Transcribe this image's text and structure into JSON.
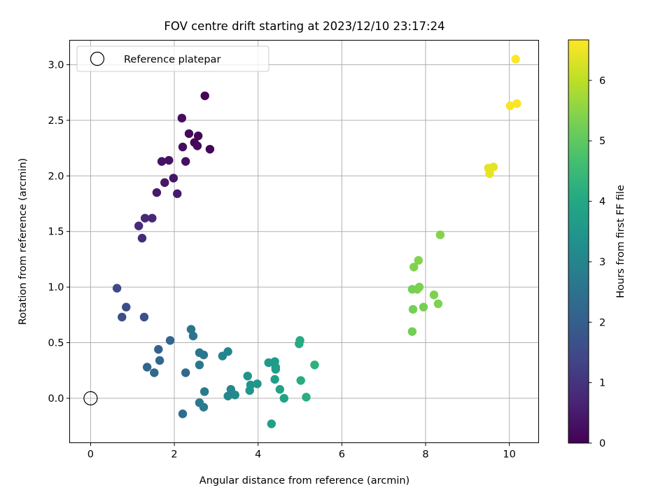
{
  "chart_data": {
    "type": "scatter",
    "title": "FOV centre drift starting at 2023/12/10 23:17:24",
    "xlabel": "Angular distance from reference (arcmin)",
    "ylabel": "Rotation from reference (arcmin)",
    "xlim": [
      -0.5,
      10.7
    ],
    "ylim": [
      -0.4,
      3.22
    ],
    "xticks": [
      0,
      2,
      4,
      6,
      8,
      10
    ],
    "xtick_labels": [
      "0",
      "2",
      "4",
      "6",
      "8",
      "10"
    ],
    "yticks": [
      0.0,
      0.5,
      1.0,
      1.5,
      2.0,
      2.5,
      3.0
    ],
    "ytick_labels": [
      "0.0",
      "0.5",
      "1.0",
      "1.5",
      "2.0",
      "2.5",
      "3.0"
    ],
    "grid": true,
    "legend": {
      "placement": "top-left",
      "entries": [
        "Reference platepar"
      ]
    },
    "reference_point": {
      "x": 0,
      "y": 0,
      "label": "Reference platepar"
    },
    "colorbar": {
      "label": "Hours from first FF file",
      "colormap": "viridis",
      "range": [
        0,
        6.67
      ],
      "ticks": [
        0,
        1,
        2,
        3,
        4,
        5,
        6
      ],
      "tick_labels": [
        "0",
        "1",
        "2",
        "3",
        "4",
        "5",
        "6"
      ]
    },
    "points": [
      {
        "x": 2.73,
        "y": 2.72,
        "t": 0.05
      },
      {
        "x": 2.85,
        "y": 2.24,
        "t": 0.08
      },
      {
        "x": 2.57,
        "y": 2.36,
        "t": 0.12
      },
      {
        "x": 2.48,
        "y": 2.3,
        "t": 0.15
      },
      {
        "x": 2.35,
        "y": 2.38,
        "t": 0.18
      },
      {
        "x": 2.55,
        "y": 2.27,
        "t": 0.2
      },
      {
        "x": 2.2,
        "y": 2.26,
        "t": 0.22
      },
      {
        "x": 2.18,
        "y": 2.52,
        "t": 0.25
      },
      {
        "x": 2.27,
        "y": 2.13,
        "t": 0.28
      },
      {
        "x": 1.87,
        "y": 2.14,
        "t": 0.32
      },
      {
        "x": 1.7,
        "y": 2.13,
        "t": 0.35
      },
      {
        "x": 1.98,
        "y": 1.98,
        "t": 0.38
      },
      {
        "x": 1.77,
        "y": 1.94,
        "t": 0.42
      },
      {
        "x": 1.58,
        "y": 1.85,
        "t": 0.45
      },
      {
        "x": 2.07,
        "y": 1.84,
        "t": 0.48
      },
      {
        "x": 1.47,
        "y": 1.62,
        "t": 0.75
      },
      {
        "x": 1.3,
        "y": 1.62,
        "t": 0.78
      },
      {
        "x": 1.15,
        "y": 1.55,
        "t": 0.8
      },
      {
        "x": 1.23,
        "y": 1.44,
        "t": 0.82
      },
      {
        "x": 0.63,
        "y": 0.99,
        "t": 1.45
      },
      {
        "x": 0.85,
        "y": 0.82,
        "t": 1.55
      },
      {
        "x": 0.75,
        "y": 0.73,
        "t": 1.6
      },
      {
        "x": 1.28,
        "y": 0.73,
        "t": 1.65
      },
      {
        "x": 1.62,
        "y": 0.44,
        "t": 2.1
      },
      {
        "x": 1.9,
        "y": 0.52,
        "t": 2.15
      },
      {
        "x": 1.35,
        "y": 0.28,
        "t": 2.2
      },
      {
        "x": 1.52,
        "y": 0.23,
        "t": 2.25
      },
      {
        "x": 1.65,
        "y": 0.34,
        "t": 2.28
      },
      {
        "x": 2.27,
        "y": 0.23,
        "t": 2.3
      },
      {
        "x": 2.2,
        "y": -0.14,
        "t": 2.35
      },
      {
        "x": 2.4,
        "y": 0.62,
        "t": 2.55
      },
      {
        "x": 2.45,
        "y": 0.56,
        "t": 2.58
      },
      {
        "x": 2.6,
        "y": 0.41,
        "t": 2.6
      },
      {
        "x": 2.7,
        "y": 0.39,
        "t": 2.62
      },
      {
        "x": 2.6,
        "y": 0.3,
        "t": 2.65
      },
      {
        "x": 2.72,
        "y": 0.06,
        "t": 2.7
      },
      {
        "x": 2.6,
        "y": -0.04,
        "t": 2.72
      },
      {
        "x": 2.7,
        "y": -0.08,
        "t": 2.74
      },
      {
        "x": 3.28,
        "y": 0.42,
        "t": 3.0
      },
      {
        "x": 3.15,
        "y": 0.38,
        "t": 3.02
      },
      {
        "x": 3.35,
        "y": 0.08,
        "t": 3.05
      },
      {
        "x": 3.28,
        "y": 0.02,
        "t": 3.08
      },
      {
        "x": 3.45,
        "y": 0.03,
        "t": 3.1
      },
      {
        "x": 3.75,
        "y": 0.2,
        "t": 3.4
      },
      {
        "x": 3.82,
        "y": 0.12,
        "t": 3.45
      },
      {
        "x": 3.8,
        "y": 0.07,
        "t": 3.48
      },
      {
        "x": 3.98,
        "y": 0.13,
        "t": 3.52
      },
      {
        "x": 4.25,
        "y": 0.32,
        "t": 3.6
      },
      {
        "x": 4.4,
        "y": 0.33,
        "t": 3.62
      },
      {
        "x": 4.42,
        "y": 0.28,
        "t": 3.65
      },
      {
        "x": 4.42,
        "y": 0.26,
        "t": 3.68
      },
      {
        "x": 4.4,
        "y": 0.17,
        "t": 3.72
      },
      {
        "x": 4.52,
        "y": 0.08,
        "t": 3.8
      },
      {
        "x": 4.62,
        "y": 0.0,
        "t": 3.85
      },
      {
        "x": 4.32,
        "y": -0.23,
        "t": 3.75
      },
      {
        "x": 5.0,
        "y": 0.52,
        "t": 4.05
      },
      {
        "x": 4.98,
        "y": 0.49,
        "t": 4.08
      },
      {
        "x": 5.02,
        "y": 0.16,
        "t": 4.12
      },
      {
        "x": 5.15,
        "y": 0.01,
        "t": 4.18
      },
      {
        "x": 5.35,
        "y": 0.3,
        "t": 4.25
      },
      {
        "x": 7.68,
        "y": 0.6,
        "t": 5.22
      },
      {
        "x": 7.7,
        "y": 0.8,
        "t": 5.25
      },
      {
        "x": 7.95,
        "y": 0.82,
        "t": 5.28
      },
      {
        "x": 7.68,
        "y": 0.98,
        "t": 5.3
      },
      {
        "x": 7.8,
        "y": 0.98,
        "t": 5.32
      },
      {
        "x": 7.85,
        "y": 1.0,
        "t": 5.34
      },
      {
        "x": 8.2,
        "y": 0.93,
        "t": 5.36
      },
      {
        "x": 8.3,
        "y": 0.85,
        "t": 5.38
      },
      {
        "x": 7.72,
        "y": 1.18,
        "t": 5.4
      },
      {
        "x": 7.83,
        "y": 1.24,
        "t": 5.42
      },
      {
        "x": 8.35,
        "y": 1.47,
        "t": 5.45
      },
      {
        "x": 9.5,
        "y": 2.07,
        "t": 6.4
      },
      {
        "x": 9.62,
        "y": 2.08,
        "t": 6.42
      },
      {
        "x": 9.53,
        "y": 2.02,
        "t": 6.44
      },
      {
        "x": 10.02,
        "y": 2.63,
        "t": 6.6
      },
      {
        "x": 10.18,
        "y": 2.65,
        "t": 6.62
      },
      {
        "x": 10.15,
        "y": 3.05,
        "t": 6.65
      }
    ]
  }
}
